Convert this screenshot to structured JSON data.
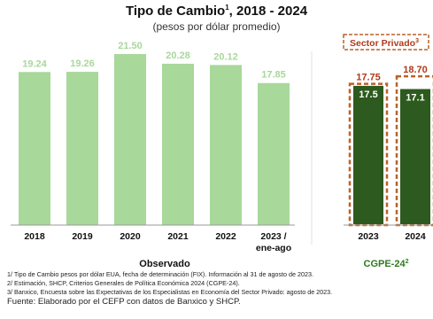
{
  "title": "Tipo de Cambio",
  "title_sup": "1",
  "title_rest": ", 2018 - 2024",
  "subtitle": "(pesos por dólar promedio)",
  "colors": {
    "observed_bar": "#a8d89a",
    "observed_label": "#a8d89a",
    "forecast_bar": "#2d5a1e",
    "sector_privado": "#b8622a",
    "sector_privado_label": "#b03a1a",
    "cgpe_label": "#2d7a1e"
  },
  "chart_data": {
    "type": "bar",
    "categories": [
      "2018",
      "2019",
      "2020",
      "2021",
      "2022",
      "2023 / ene-ago",
      "2023",
      "2024"
    ],
    "series": [
      {
        "name": "Observado",
        "values": [
          19.24,
          19.26,
          21.5,
          20.28,
          20.12,
          17.85,
          null,
          null
        ]
      },
      {
        "name": "CGPE-24",
        "values": [
          null,
          null,
          null,
          null,
          null,
          null,
          17.5,
          17.1
        ]
      },
      {
        "name": "Sector Privado",
        "values": [
          null,
          null,
          null,
          null,
          null,
          null,
          17.75,
          18.7
        ]
      }
    ],
    "value_labels": [
      "19.24",
      "19.26",
      "21.50",
      "20.28",
      "20.12",
      "17.85",
      "17.5",
      "17.1",
      "17.75",
      "18.70"
    ],
    "group_labels": {
      "observado": "Observado",
      "cgpe": "CGPE-24",
      "cgpe_sup": "2"
    },
    "legend": {
      "sector_privado": "Sector Privado",
      "sector_privado_sup": "3"
    },
    "ylim": [
      0,
      22.5
    ],
    "grid": false
  },
  "notes": [
    "1/ Tipo de Cambio pesos por dólar EUA, fecha de determinación (FIX). Información al 31 de agosto de 2023.",
    "2/ Estimación, SHCP, Criterios Generales de Política Económica 2024 (CGPE-24).",
    "3/ Banxico, Encuesta sobre las Expectativas de los Especialistas en Economía del Sector Privado: agosto de 2023."
  ],
  "source": "Fuente: Elaborado por el CEFP con datos de Banxico y SHCP."
}
